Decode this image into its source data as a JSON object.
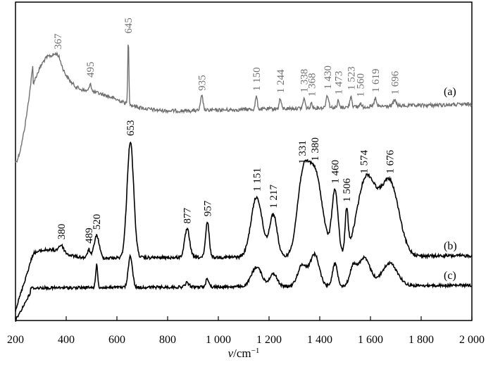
{
  "chart_data": {
    "type": "line",
    "title": "",
    "xlabel_var": "v",
    "xlabel_unit": "/cm",
    "xlabel_exp": "−1",
    "ylabel": "",
    "xlim": [
      200,
      2000
    ],
    "x_ticks": [
      {
        "value": 200,
        "label": "200"
      },
      {
        "value": 400,
        "label": "400"
      },
      {
        "value": 600,
        "label": "600"
      },
      {
        "value": 800,
        "label": "800"
      },
      {
        "value": 1000,
        "label": "1 000"
      },
      {
        "value": 1200,
        "label": "1 200"
      },
      {
        "value": 1400,
        "label": "1 400"
      },
      {
        "value": 1600,
        "label": "1 600"
      },
      {
        "value": 1800,
        "label": "1 800"
      },
      {
        "value": 2000,
        "label": "2 000"
      }
    ],
    "grid": false,
    "legend": "none",
    "series": [
      {
        "tag": "(a)",
        "color": "#707070",
        "peaks": [
          {
            "x": 367,
            "label": "367"
          },
          {
            "x": 495,
            "label": "495"
          },
          {
            "x": 645,
            "label": "645"
          },
          {
            "x": 935,
            "label": "935"
          },
          {
            "x": 1150,
            "label": "1 150"
          },
          {
            "x": 1244,
            "label": "1 244"
          },
          {
            "x": 1338,
            "label": "1 338"
          },
          {
            "x": 1368,
            "label": "1 368"
          },
          {
            "x": 1430,
            "label": "1 430"
          },
          {
            "x": 1473,
            "label": "1 473"
          },
          {
            "x": 1523,
            "label": "1 523"
          },
          {
            "x": 1560,
            "label": "1 560"
          },
          {
            "x": 1619,
            "label": "1 619"
          },
          {
            "x": 1696,
            "label": "1 696"
          }
        ]
      },
      {
        "tag": "(b)",
        "color": "#000000",
        "peaks": [
          {
            "x": 380,
            "label": "380"
          },
          {
            "x": 489,
            "label": "489"
          },
          {
            "x": 520,
            "label": "520"
          },
          {
            "x": 653,
            "label": "653"
          },
          {
            "x": 877,
            "label": "877"
          },
          {
            "x": 957,
            "label": "957"
          },
          {
            "x": 1151,
            "label": "1 151"
          },
          {
            "x": 1217,
            "label": "1 217"
          },
          {
            "x": 1331,
            "label": "1 331"
          },
          {
            "x": 1380,
            "label": "1 380"
          },
          {
            "x": 1460,
            "label": "1 460"
          },
          {
            "x": 1506,
            "label": "1 506"
          },
          {
            "x": 1574,
            "label": "1 574"
          },
          {
            "x": 1676,
            "label": "1 676"
          }
        ]
      },
      {
        "tag": "(c)",
        "color": "#000000",
        "peaks": []
      }
    ]
  }
}
